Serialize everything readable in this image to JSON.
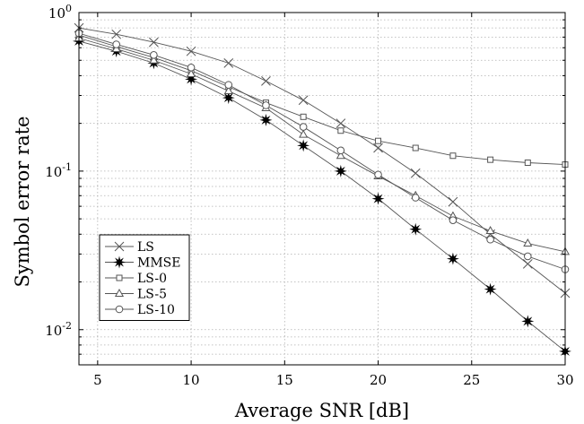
{
  "chart_data": {
    "type": "line",
    "xlabel": "Average SNR [dB]",
    "ylabel": "Symbol error rate",
    "xlim": [
      4,
      30
    ],
    "ylim": [
      0.006,
      1
    ],
    "yscale": "log",
    "grid": true,
    "legend_position": "bottom-left",
    "x_ticks": [
      5,
      10,
      15,
      20,
      25,
      30
    ],
    "y_ticks": [
      {
        "value": 1,
        "base": "10",
        "exp": "0"
      },
      {
        "value": 0.1,
        "base": "10",
        "exp": "-1"
      },
      {
        "value": 0.01,
        "base": "10",
        "exp": "-2"
      }
    ],
    "series": [
      {
        "name": "LS",
        "marker": "x",
        "x": [
          4,
          6,
          8,
          10,
          12,
          14,
          16,
          18,
          20,
          22,
          24,
          26,
          28,
          30
        ],
        "values": [
          0.8,
          0.73,
          0.65,
          0.57,
          0.48,
          0.37,
          0.28,
          0.2,
          0.14,
          0.097,
          0.064,
          0.04,
          0.026,
          0.017
        ]
      },
      {
        "name": "MMSE",
        "marker": "star",
        "x": [
          4,
          6,
          8,
          10,
          12,
          14,
          16,
          18,
          20,
          22,
          24,
          26,
          28,
          30
        ],
        "values": [
          0.66,
          0.57,
          0.48,
          0.38,
          0.29,
          0.21,
          0.145,
          0.1,
          0.067,
          0.043,
          0.028,
          0.018,
          0.0113,
          0.0073
        ]
      },
      {
        "name": "LS-0",
        "marker": "square",
        "x": [
          4,
          6,
          8,
          10,
          12,
          14,
          16,
          18,
          20,
          22,
          24,
          26,
          28,
          30
        ],
        "values": [
          0.72,
          0.61,
          0.52,
          0.43,
          0.34,
          0.27,
          0.22,
          0.18,
          0.155,
          0.14,
          0.125,
          0.118,
          0.113,
          0.11
        ]
      },
      {
        "name": "LS-5",
        "marker": "triangle",
        "x": [
          4,
          6,
          8,
          10,
          12,
          14,
          16,
          18,
          20,
          22,
          24,
          26,
          28,
          30
        ],
        "values": [
          0.69,
          0.59,
          0.5,
          0.41,
          0.32,
          0.25,
          0.17,
          0.125,
          0.093,
          0.07,
          0.052,
          0.042,
          0.035,
          0.031
        ]
      },
      {
        "name": "LS-10",
        "marker": "circle",
        "x": [
          4,
          6,
          8,
          10,
          12,
          14,
          16,
          18,
          20,
          22,
          24,
          26,
          28,
          30
        ],
        "values": [
          0.74,
          0.63,
          0.54,
          0.45,
          0.35,
          0.26,
          0.19,
          0.135,
          0.095,
          0.068,
          0.049,
          0.037,
          0.029,
          0.024
        ]
      }
    ]
  }
}
